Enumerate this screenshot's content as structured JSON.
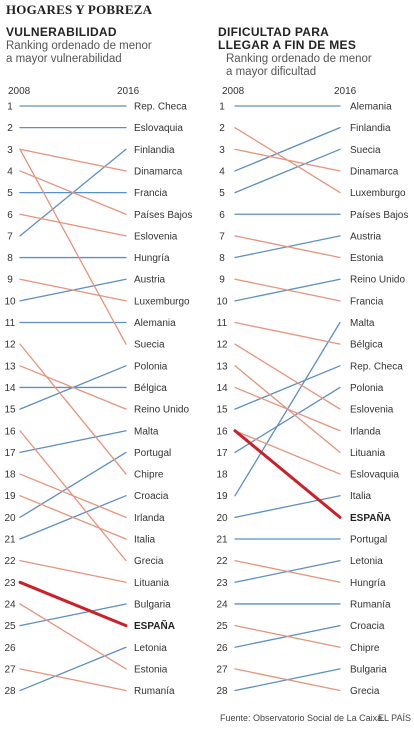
{
  "header": {
    "title": "HOGARES Y POBREZA"
  },
  "footer": {
    "source": "Fuente: Observatorio Social de La Caixa.",
    "brand": "EL PAÍS"
  },
  "colors": {
    "up": "#5b8fc4",
    "down": "#e8937a",
    "spain": "#cc1f27",
    "dark": "#3a3a3a"
  },
  "chart_data": [
    {
      "type": "slope",
      "title_lines": [
        "VULNERABILIDAD"
      ],
      "subtitle_lines": [
        "Ranking ordenado de menor",
        "a mayor vulnerabilidad"
      ],
      "start_label": "2008",
      "end_label": "2016",
      "ranks": [
        "1",
        "2",
        "3",
        "4",
        "5",
        "6",
        "7",
        "8",
        "9",
        "10",
        "11",
        "12",
        "13",
        "14",
        "15",
        "16",
        "17",
        "18",
        "19",
        "20",
        "21",
        "22",
        "23",
        "24",
        "25",
        "26",
        "27",
        "28"
      ],
      "end_countries": [
        "Rep. Checa",
        "Eslovaquia",
        "Finlandia",
        "Dinamarca",
        "Francia",
        "Países Bajos",
        "Eslovenia",
        "Hungría",
        "Austria",
        "Luxemburgo",
        "Alemania",
        "Suecia",
        "Polonia",
        "Bélgica",
        "Reino Unido",
        "Malta",
        "Portugal",
        "Chipre",
        "Croacia",
        "Irlanda",
        "Italia",
        "Grecia",
        "Lituania",
        "Bulgaria",
        "ESPAÑA",
        "Letonia",
        "Estonia",
        "Rumanía"
      ],
      "start_rank_of_end": [
        1,
        2,
        7,
        3,
        5,
        4,
        6,
        8,
        10,
        9,
        11,
        3,
        15,
        14,
        13,
        17,
        20,
        12,
        21,
        18,
        19,
        16,
        22,
        25,
        23,
        28,
        24,
        27
      ]
    },
    {
      "type": "slope",
      "title_lines": [
        "DIFICULTAD PARA",
        "LLEGAR A FIN DE MES"
      ],
      "subtitle_lines": [
        "Ranking ordenado de menor",
        "a mayor dificultad"
      ],
      "start_label": "2008",
      "end_label": "2016",
      "ranks": [
        "1",
        "2",
        "3",
        "4",
        "5",
        "6",
        "7",
        "8",
        "9",
        "10",
        "11",
        "12",
        "13",
        "14",
        "15",
        "16",
        "17",
        "18",
        "19",
        "20",
        "21",
        "22",
        "23",
        "24",
        "25",
        "26",
        "27",
        "28"
      ],
      "end_countries": [
        "Alemania",
        "Finlandia",
        "Suecia",
        "Dinamarca",
        "Luxemburgo",
        "Países Bajos",
        "Austria",
        "Estonia",
        "Reino Unido",
        "Francia",
        "Malta",
        "Bélgica",
        "Rep. Checa",
        "Polonia",
        "Eslovenia",
        "Irlanda",
        "Lituania",
        "Eslovaquia",
        "Italia",
        "ESPAÑA",
        "Portugal",
        "Letonia",
        "Hungría",
        "Rumanía",
        "Croacia",
        "Chipre",
        "Bulgaria",
        "Grecia"
      ],
      "start_rank_of_end": [
        1,
        4,
        5,
        3,
        2,
        6,
        8,
        7,
        10,
        9,
        19,
        11,
        15,
        17,
        12,
        14,
        13,
        16,
        20,
        16,
        21,
        23,
        22,
        24,
        26,
        25,
        28,
        27
      ]
    }
  ]
}
